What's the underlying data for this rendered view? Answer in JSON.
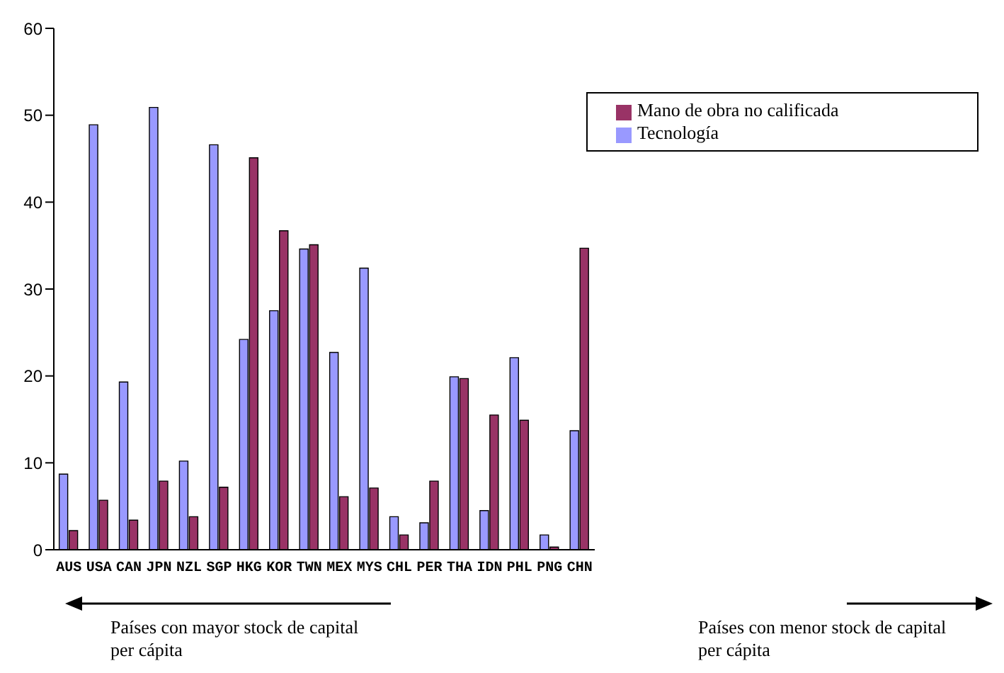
{
  "chart_data": {
    "type": "bar",
    "categories": [
      "AUS",
      "USA",
      "CAN",
      "JPN",
      "NZL",
      "SGP",
      "HKG",
      "KOR",
      "TWN",
      "MEX",
      "MYS",
      "CHL",
      "PER",
      "THA",
      "IDN",
      "PHL",
      "PNG",
      "CHN"
    ],
    "series": [
      {
        "name": "Tecnología",
        "color": "#9999ff",
        "values": [
          8.7,
          48.9,
          19.3,
          50.9,
          10.2,
          46.6,
          24.2,
          27.5,
          34.6,
          22.7,
          32.4,
          3.8,
          3.1,
          19.9,
          4.5,
          22.1,
          1.7,
          13.7
        ]
      },
      {
        "name": "Mano de obra no calificada",
        "color": "#993366",
        "values": [
          2.2,
          5.7,
          3.4,
          7.9,
          3.8,
          7.2,
          45.1,
          36.7,
          35.1,
          6.1,
          7.1,
          1.7,
          7.9,
          19.7,
          15.5,
          14.9,
          0.3,
          34.7
        ]
      }
    ],
    "ylim": [
      0,
      60
    ],
    "yticks": [
      0,
      10,
      20,
      30,
      40,
      50,
      60
    ],
    "grid": false,
    "legend": "top right",
    "annotations": [
      "Países con mayor stock de capital per cápita",
      "Países con menor stock de capital per cápita"
    ]
  }
}
